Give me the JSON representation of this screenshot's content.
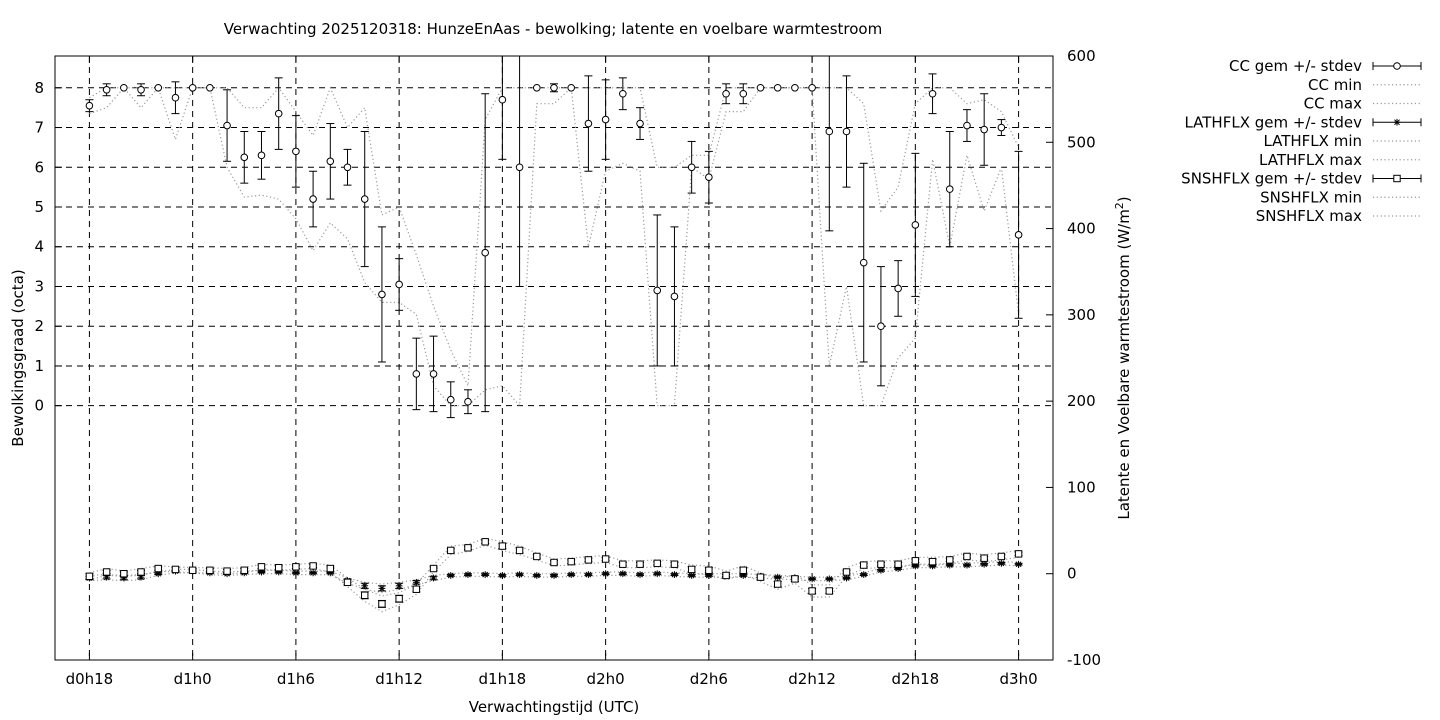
{
  "chart_data": {
    "type": "line",
    "title": "Verwachting 2025120318: HunzeEnAas - bewolking; latente en voelbare warmtestroom",
    "xlabel": "Verwachtingstijd (UTC)",
    "ylabel": "Bewolkingsgraad (octa)",
    "y2label_main": "Latente en Voelbare warmtestroom (W/m",
    "y2label_sup": "2",
    "y2label_end": ")",
    "x_range": [
      16,
      74
    ],
    "y_range": [
      -6.4,
      8.8
    ],
    "y2_range": [
      -100,
      600
    ],
    "x_ticks": [
      {
        "x": 18,
        "label": "d0h18"
      },
      {
        "x": 24,
        "label": "d1h0"
      },
      {
        "x": 30,
        "label": "d1h6"
      },
      {
        "x": 36,
        "label": "d1h12"
      },
      {
        "x": 42,
        "label": "d1h18"
      },
      {
        "x": 48,
        "label": "d2h0"
      },
      {
        "x": 54,
        "label": "d2h6"
      },
      {
        "x": 60,
        "label": "d2h12"
      },
      {
        "x": 66,
        "label": "d2h18"
      },
      {
        "x": 72,
        "label": "d3h0"
      }
    ],
    "y_ticks": [
      0,
      1,
      2,
      3,
      4,
      5,
      6,
      7,
      8
    ],
    "y2_ticks": [
      -100,
      0,
      100,
      200,
      300,
      400,
      500,
      600
    ],
    "grid": true,
    "legend_position": "outside-top-right",
    "legend": [
      {
        "label": "CC gem +/- stdev",
        "kind": "err",
        "marker": "circle"
      },
      {
        "label": "CC min",
        "kind": "dotted"
      },
      {
        "label": "CC max",
        "kind": "dotted"
      },
      {
        "label": "LATHFLX gem +/- stdev",
        "kind": "err",
        "marker": "star"
      },
      {
        "label": "LATHFLX min",
        "kind": "dotted"
      },
      {
        "label": "LATHFLX max",
        "kind": "dotted"
      },
      {
        "label": "SNSHFLX gem +/- stdev",
        "kind": "err",
        "marker": "square"
      },
      {
        "label": "SNSHFLX min",
        "kind": "dotted"
      },
      {
        "label": "SNSHFLX max",
        "kind": "dotted"
      }
    ],
    "x": [
      18,
      19,
      20,
      21,
      22,
      23,
      24,
      25,
      26,
      27,
      28,
      29,
      30,
      31,
      32,
      33,
      34,
      35,
      36,
      37,
      38,
      39,
      40,
      41,
      42,
      43,
      44,
      45,
      46,
      47,
      48,
      49,
      50,
      51,
      52,
      53,
      54,
      55,
      56,
      57,
      58,
      59,
      60,
      61,
      62,
      63,
      64,
      65,
      66,
      67,
      68,
      69,
      70,
      71,
      72
    ],
    "series": [
      {
        "name": "CC gem +/- stdev",
        "axis": "y",
        "marker": "circle",
        "mean": [
          7.55,
          7.95,
          8.0,
          7.95,
          8.0,
          7.75,
          8.0,
          8.0,
          7.05,
          6.25,
          6.3,
          7.35,
          6.4,
          5.2,
          6.15,
          6.0,
          5.2,
          2.8,
          3.05,
          0.8,
          0.8,
          0.15,
          0.1,
          3.85,
          7.7,
          6.0,
          8.0,
          8.0,
          8.0,
          7.1,
          7.2,
          7.85,
          7.1,
          2.9,
          2.75,
          6.0,
          5.75,
          7.85,
          7.85,
          8.0,
          8.0,
          8.0,
          8.0,
          6.9,
          6.9,
          3.6,
          2.0,
          2.95,
          4.55,
          7.85,
          5.45,
          7.05,
          6.95,
          7.0,
          4.3
        ],
        "stdev": [
          0.15,
          0.15,
          0.0,
          0.15,
          0.0,
          0.4,
          0.0,
          0.0,
          0.9,
          0.65,
          0.6,
          0.9,
          0.9,
          0.7,
          0.95,
          0.45,
          1.7,
          1.7,
          0.65,
          0.9,
          0.95,
          0.45,
          0.3,
          4.0,
          1.5,
          3.0,
          0.0,
          0.1,
          0.0,
          1.2,
          1.0,
          0.4,
          0.4,
          1.9,
          1.75,
          0.65,
          0.65,
          0.25,
          0.25,
          0.0,
          0.0,
          0.0,
          0.0,
          2.5,
          1.4,
          2.5,
          1.5,
          0.7,
          1.8,
          0.5,
          1.45,
          0.4,
          0.9,
          0.2,
          2.1
        ],
        "min": [
          7.35,
          7.5,
          8.0,
          7.5,
          8.0,
          6.7,
          8.0,
          8.0,
          6.0,
          5.25,
          5.3,
          5.2,
          4.7,
          3.9,
          4.6,
          4.2,
          3.1,
          2.6,
          2.6,
          2.3,
          0.5,
          0.0,
          0.0,
          0.4,
          0.5,
          0.0,
          7.6,
          7.6,
          8.0,
          4.0,
          5.9,
          6.1,
          5.9,
          0.0,
          0.0,
          6.0,
          5.7,
          7.4,
          7.4,
          8.0,
          8.0,
          8.0,
          8.0,
          1.0,
          3.0,
          0.0,
          0.0,
          1.2,
          1.7,
          6.2,
          4.0,
          6.3,
          4.9,
          6.0,
          2.3
        ],
        "max": [
          7.75,
          8.0,
          8.0,
          8.0,
          8.0,
          8.0,
          8.0,
          8.0,
          8.0,
          7.5,
          7.5,
          8.0,
          7.4,
          6.8,
          8.0,
          7.0,
          7.5,
          4.8,
          5.0,
          3.8,
          2.5,
          1.4,
          0.5,
          7.2,
          8.0,
          8.0,
          8.0,
          8.0,
          8.0,
          8.0,
          8.0,
          8.0,
          8.0,
          6.0,
          6.0,
          6.3,
          6.3,
          8.0,
          8.0,
          8.0,
          8.0,
          8.0,
          8.0,
          8.0,
          8.0,
          7.6,
          4.9,
          5.5,
          7.6,
          8.0,
          8.0,
          7.6,
          7.7,
          7.4,
          6.5
        ]
      },
      {
        "name": "LATHFLX gem +/- stdev",
        "axis": "y2",
        "marker": "star",
        "mean": [
          -5,
          -4,
          -5,
          -4,
          0,
          3,
          3,
          1,
          0,
          1,
          2,
          2,
          1,
          1,
          1,
          -8,
          -14,
          -17,
          -14,
          -10,
          -5,
          -2,
          -1,
          -1,
          -2,
          -1,
          -2,
          -2,
          -1,
          -1,
          0,
          0,
          -1,
          0,
          -1,
          -2,
          -2,
          -2,
          -2,
          -3,
          -4,
          -5,
          -6,
          -6,
          -5,
          -1,
          4,
          6,
          9,
          9,
          10,
          10,
          11,
          12,
          11
        ],
        "stdev": [
          2,
          2,
          2,
          2,
          1,
          1,
          1,
          1,
          1,
          1,
          1,
          1,
          1,
          1,
          1,
          2,
          3,
          3,
          3,
          2,
          2,
          1,
          1,
          1,
          1,
          1,
          1,
          1,
          1,
          1,
          1,
          1,
          1,
          1,
          1,
          1,
          1,
          1,
          1,
          1,
          1,
          1,
          1,
          1,
          1,
          1,
          1,
          1,
          1,
          1,
          1,
          1,
          1,
          1,
          1
        ],
        "min": [
          -8,
          -7,
          -8,
          -7,
          -2,
          1,
          1,
          -1,
          -2,
          -1,
          0,
          0,
          -1,
          -1,
          -1,
          -11,
          -18,
          -22,
          -18,
          -13,
          -8,
          -4,
          -3,
          -3,
          -4,
          -3,
          -4,
          -4,
          -3,
          -3,
          -2,
          -2,
          -3,
          -2,
          -3,
          -4,
          -4,
          -4,
          -4,
          -5,
          -6,
          -7,
          -8,
          -8,
          -7,
          -3,
          2,
          4,
          7,
          7,
          8,
          8,
          9,
          10,
          9
        ],
        "max": [
          -2,
          -1,
          -2,
          -1,
          2,
          5,
          5,
          3,
          2,
          3,
          4,
          4,
          3,
          3,
          3,
          -5,
          -10,
          -12,
          -10,
          -7,
          -2,
          0,
          1,
          1,
          0,
          1,
          0,
          0,
          1,
          1,
          2,
          2,
          1,
          2,
          1,
          0,
          0,
          0,
          0,
          -1,
          -2,
          -3,
          -4,
          -4,
          -3,
          1,
          6,
          8,
          11,
          11,
          12,
          12,
          13,
          14,
          13
        ]
      },
      {
        "name": "SNSHFLX gem +/- stdev",
        "axis": "y2",
        "marker": "square",
        "mean": [
          -3,
          2,
          0,
          2,
          6,
          5,
          4,
          4,
          3,
          4,
          8,
          7,
          8,
          9,
          6,
          -10,
          -25,
          -35,
          -29,
          -18,
          6,
          27,
          30,
          37,
          32,
          27,
          20,
          13,
          14,
          16,
          17,
          11,
          11,
          12,
          11,
          5,
          4,
          -2,
          4,
          -4,
          -12,
          -6,
          -20,
          -20,
          2,
          10,
          11,
          11,
          15,
          14,
          16,
          20,
          18,
          20,
          23
        ],
        "stdev": [
          3,
          2,
          2,
          2,
          2,
          2,
          2,
          2,
          2,
          2,
          2,
          2,
          2,
          2,
          3,
          3,
          4,
          4,
          4,
          3,
          2,
          2,
          2,
          2,
          3,
          3,
          2,
          2,
          2,
          2,
          2,
          2,
          2,
          2,
          2,
          3,
          3,
          3,
          3,
          3,
          3,
          3,
          3,
          3,
          2,
          2,
          2,
          2,
          2,
          3,
          2,
          2,
          2,
          2,
          2
        ],
        "min": [
          -7,
          -2,
          -3,
          -2,
          3,
          2,
          1,
          1,
          0,
          1,
          5,
          4,
          5,
          6,
          2,
          -15,
          -32,
          -44,
          -36,
          -24,
          2,
          22,
          26,
          33,
          27,
          22,
          16,
          9,
          10,
          12,
          13,
          7,
          7,
          8,
          7,
          0,
          -1,
          -7,
          -1,
          -9,
          -18,
          -11,
          -27,
          -27,
          -3,
          6,
          7,
          7,
          11,
          9,
          12,
          16,
          14,
          16,
          19
        ],
        "max": [
          1,
          6,
          3,
          6,
          9,
          8,
          7,
          7,
          6,
          7,
          11,
          10,
          11,
          12,
          10,
          -5,
          -18,
          -26,
          -22,
          -12,
          10,
          32,
          34,
          41,
          37,
          32,
          24,
          17,
          18,
          20,
          21,
          15,
          15,
          16,
          15,
          10,
          9,
          3,
          9,
          1,
          -6,
          -1,
          -13,
          -13,
          7,
          14,
          15,
          15,
          19,
          19,
          20,
          24,
          22,
          24,
          27
        ]
      }
    ]
  }
}
